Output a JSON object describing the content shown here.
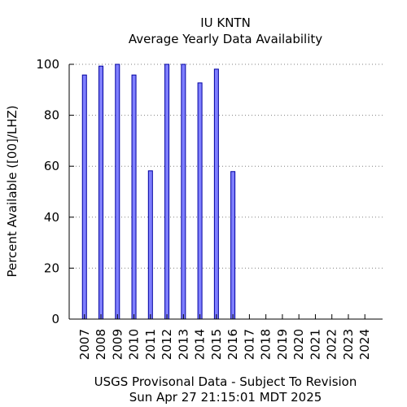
{
  "chart_data": {
    "type": "bar",
    "title": "IU KNTN",
    "subtitle": "Average Yearly Data Availability",
    "ylabel": "Percent Available ([00]/LHZ)",
    "xlabel": "",
    "footer_lines": [
      "USGS Provisonal Data - Subject To Revision",
      "Sun Apr 27 21:15:01 MDT 2025"
    ],
    "categories": [
      "2007",
      "2008",
      "2009",
      "2010",
      "2011",
      "2012",
      "2013",
      "2014",
      "2015",
      "2016",
      "2017",
      "2018",
      "2019",
      "2020",
      "2021",
      "2022",
      "2023",
      "2024"
    ],
    "values": [
      95.8,
      99.3,
      100,
      95.8,
      58.2,
      100,
      100,
      92.7,
      98.1,
      57.9,
      null,
      null,
      null,
      null,
      null,
      null,
      null,
      null
    ],
    "ylim": [
      0,
      100
    ],
    "yticks": [
      0,
      20,
      40,
      60,
      80,
      100
    ],
    "grid": true,
    "legend": "none",
    "bar_fill": "#7f7fff",
    "bar_stroke": "#0000a0"
  }
}
